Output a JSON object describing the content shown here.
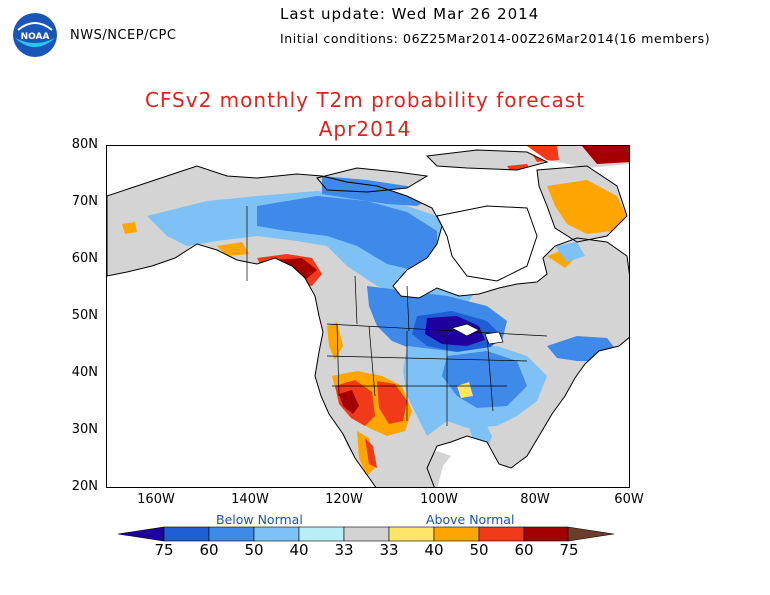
{
  "header": {
    "agency": "NWS/NCEP/CPC",
    "last_update": "Last update: Wed Mar 26 2014",
    "initial_conditions": "Initial conditions: 06Z25Mar2014-00Z26Mar2014(16 members)",
    "logo_text": "NOAA"
  },
  "title": {
    "line1": "CFSv2 monthly T2m probability forecast",
    "line2": "Apr2014"
  },
  "map": {
    "lat_labels": [
      "80N",
      "70N",
      "60N",
      "50N",
      "40N",
      "30N",
      "20N"
    ],
    "lon_labels": [
      "160W",
      "140W",
      "120W",
      "100W",
      "80W",
      "60W"
    ],
    "colors": {
      "land_normal": "#d4d4d4",
      "water": "#ffffff",
      "coast": "#000000"
    }
  },
  "legend": {
    "below_label": "Below Normal",
    "above_label": "Above Normal",
    "labels": [
      "75",
      "60",
      "50",
      "40",
      "33",
      "33",
      "40",
      "50",
      "60",
      "75"
    ],
    "colors": [
      "#1f009e",
      "#1f5fd6",
      "#3f8ae8",
      "#7ec1f5",
      "#b8eef8",
      "#d3d3d3",
      "#ffe566",
      "#ffa500",
      "#f03a1a",
      "#a40000",
      "#6b3d2a"
    ]
  }
}
